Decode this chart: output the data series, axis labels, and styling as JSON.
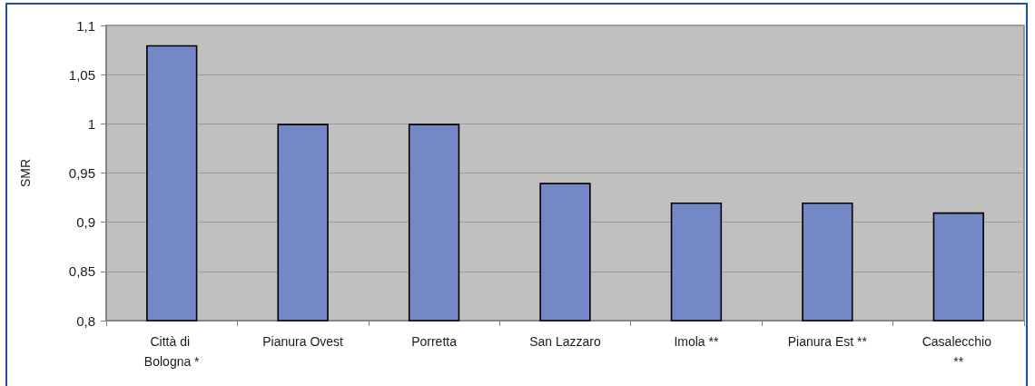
{
  "chart_data": {
    "type": "bar",
    "ylabel": "SMR",
    "categories": [
      "Città di Bologna *",
      "Pianura Ovest",
      "Porretta",
      "San Lazzaro",
      "Imola **",
      "Pianura Est **",
      "Casalecchio **"
    ],
    "values": [
      1.08,
      1.0,
      1.0,
      0.94,
      0.92,
      0.92,
      0.91
    ],
    "color": "#7488c8",
    "ylim": [
      0.8,
      1.1
    ],
    "yticks": [
      {
        "value": 0.8,
        "label": "0,8"
      },
      {
        "value": 0.85,
        "label": "0,85"
      },
      {
        "value": 0.9,
        "label": "0,9"
      },
      {
        "value": 0.95,
        "label": "0,95"
      },
      {
        "value": 1,
        "label": "1"
      },
      {
        "value": 1.05,
        "label": "1,05"
      },
      {
        "value": 1.1,
        "label": "1,1"
      }
    ],
    "grid": "y"
  }
}
